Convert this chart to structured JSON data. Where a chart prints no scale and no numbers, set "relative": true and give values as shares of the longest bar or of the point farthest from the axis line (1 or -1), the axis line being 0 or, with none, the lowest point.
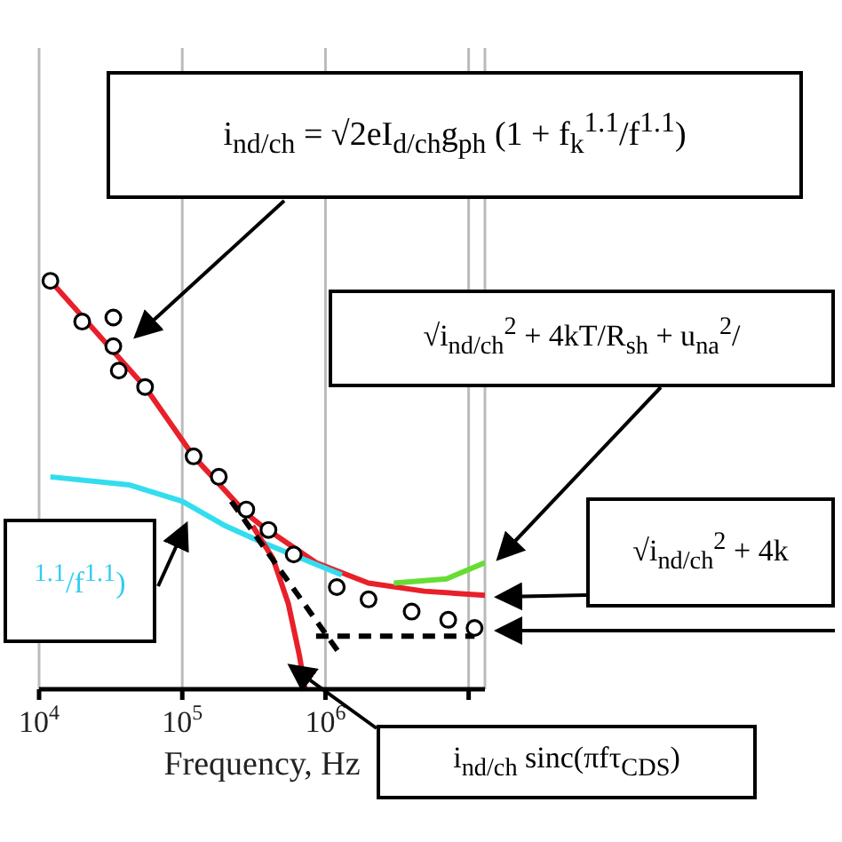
{
  "chart_data": {
    "type": "line",
    "xlabel": "Frequency, Hz",
    "log": "x",
    "relative": true,
    "grid": "x",
    "xlim": [
      10000,
      13000000
    ],
    "xticks": [
      {
        "value": 10000,
        "label": "10$^{4}$"
      },
      {
        "value": 100000,
        "label": "10$^{5}$"
      },
      {
        "value": 1000000,
        "label": "10$^{6}$"
      },
      {
        "value": 10000000,
        "label": null
      }
    ],
    "annotations": [
      "i$_{nd/ch}$ = √2eI$_{d/ch}$g$_{ph}$ (1 + f$_{k}$$^{1.1}$/f$^{1.1}$)",
      "√i$_{nd/ch}$$^{2}$ + 4kT/R$_{sh}$ + u$_{na}$$^{2}$/",
      "√i$_{nd/ch}$$^{2}$ + 4k",
      "i$_{nd/ch}$ sinc(πfτ$_{CDS}$)",
      "$^{1.1}$/f$^{1.1}$)"
    ],
    "series": [
      {
        "type": "scatter",
        "marker": "circle",
        "color": "#000000",
        "x": [
          12000,
          20000,
          33000,
          33000,
          36000,
          55000,
          120000,
          180000,
          280000,
          400000,
          600000,
          1200000,
          2000000,
          4000000,
          7200000,
          11000000
        ],
        "values": [
          1.0,
          0.9,
          0.84,
          0.91,
          0.78,
          0.74,
          0.57,
          0.52,
          0.44,
          0.39,
          0.33,
          0.25,
          0.22,
          0.19,
          0.17,
          0.15
        ]
      },
      {
        "marker": "none",
        "line_style": "solid",
        "color": "#e8202a",
        "x": [
          12000,
          55000,
          120000,
          280000,
          360000,
          860000,
          2000000,
          4900000,
          13000000
        ],
        "values": [
          1.0,
          0.74,
          0.57,
          0.43,
          0.4,
          0.31,
          0.26,
          0.24,
          0.23
        ]
      },
      {
        "marker": "none",
        "line_style": "solid",
        "color": "#66dd33",
        "x": [
          3000000,
          7000000,
          13000000
        ],
        "values": [
          0.26,
          0.27,
          0.31
        ]
      },
      {
        "marker": "none",
        "line_style": "solid",
        "color": "#33ddee",
        "x": [
          12000,
          43000,
          100000,
          200000,
          360000,
          1300000
        ],
        "values": [
          0.52,
          0.5,
          0.46,
          0.4,
          0.36,
          0.28
        ]
      },
      {
        "marker": "none",
        "line_style": "solid",
        "color": "#e8202a",
        "x": [
          310000,
          430000,
          550000,
          660000,
          720000
        ],
        "values": [
          0.4,
          0.32,
          0.21,
          0.08,
          0
        ]
      },
      {
        "marker": "none",
        "line_style": "dashed",
        "color": "#000000",
        "x": [
          220000,
          1300000
        ],
        "values": [
          0.46,
          0.08
        ]
      },
      {
        "marker": "none",
        "line_style": "dashed",
        "color": "#000000",
        "x": [
          860000,
          11000000
        ],
        "values": [
          0.13,
          0.13
        ]
      }
    ]
  }
}
